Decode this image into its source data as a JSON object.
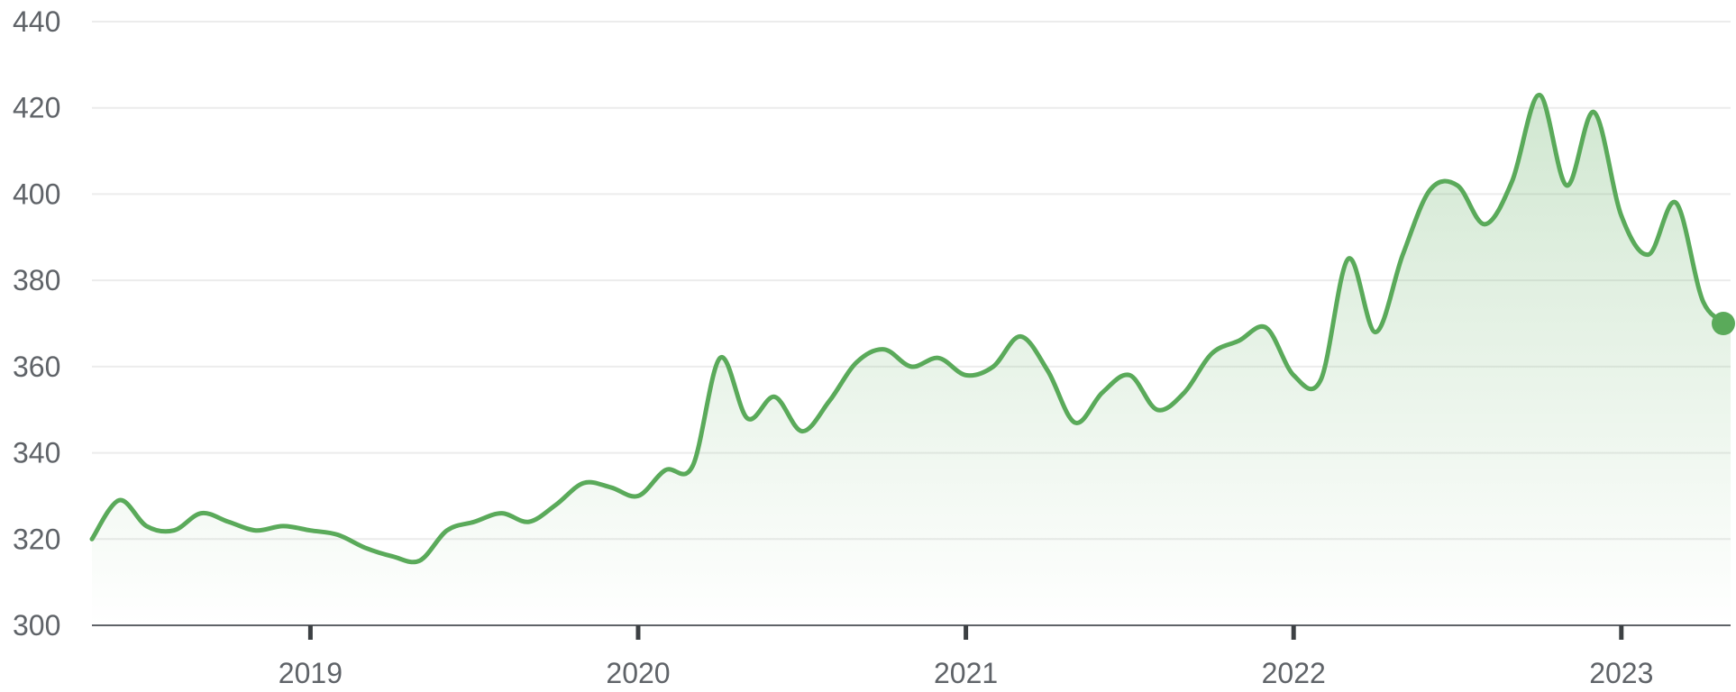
{
  "chart_data": {
    "type": "area",
    "title": "",
    "xlabel": "",
    "ylabel": "",
    "ylim": [
      300,
      440
    ],
    "xlim": [
      "2018-05",
      "2023-05"
    ],
    "yticks": [
      "300",
      "320",
      "340",
      "360",
      "380",
      "400",
      "420",
      "440"
    ],
    "xticks": [
      "2019",
      "2020",
      "2021",
      "2022",
      "2023"
    ],
    "grid": true,
    "legend": "none",
    "colors": {
      "line": "#5aaa5a",
      "fill": "#5aaa5a",
      "marker": "#5aaa5a"
    },
    "series": [
      {
        "x": [
          "2018-05",
          "2018-06",
          "2018-07",
          "2018-08",
          "2018-09",
          "2018-10",
          "2018-11",
          "2018-12",
          "2019-01",
          "2019-02",
          "2019-03",
          "2019-04",
          "2019-05",
          "2019-06",
          "2019-07",
          "2019-08",
          "2019-09",
          "2019-10",
          "2019-11",
          "2019-12",
          "2020-01",
          "2020-02",
          "2020-03",
          "2020-04",
          "2020-05",
          "2020-06",
          "2020-07",
          "2020-08",
          "2020-09",
          "2020-10",
          "2020-11",
          "2020-12",
          "2021-01",
          "2021-02",
          "2021-03",
          "2021-04",
          "2021-05",
          "2021-06",
          "2021-07",
          "2021-08",
          "2021-09",
          "2021-10",
          "2021-11",
          "2021-12",
          "2022-01",
          "2022-02",
          "2022-03",
          "2022-04",
          "2022-05",
          "2022-06",
          "2022-07",
          "2022-08",
          "2022-09",
          "2022-10",
          "2022-11",
          "2022-12",
          "2023-01",
          "2023-02",
          "2023-03",
          "2023-04",
          "2023-05"
        ],
        "values": [
          320,
          329,
          323,
          322,
          326,
          324,
          322,
          323,
          322,
          321,
          318,
          316,
          315,
          322,
          324,
          326,
          324,
          328,
          333,
          332,
          330,
          336,
          337,
          362,
          348,
          353,
          345,
          352,
          361,
          364,
          360,
          362,
          358,
          360,
          367,
          359,
          347,
          354,
          358,
          350,
          354,
          363,
          366,
          369,
          358,
          357,
          385,
          368,
          386,
          401,
          402,
          393,
          403,
          423,
          402,
          419,
          395,
          386,
          398,
          375,
          370
        ]
      }
    ]
  }
}
